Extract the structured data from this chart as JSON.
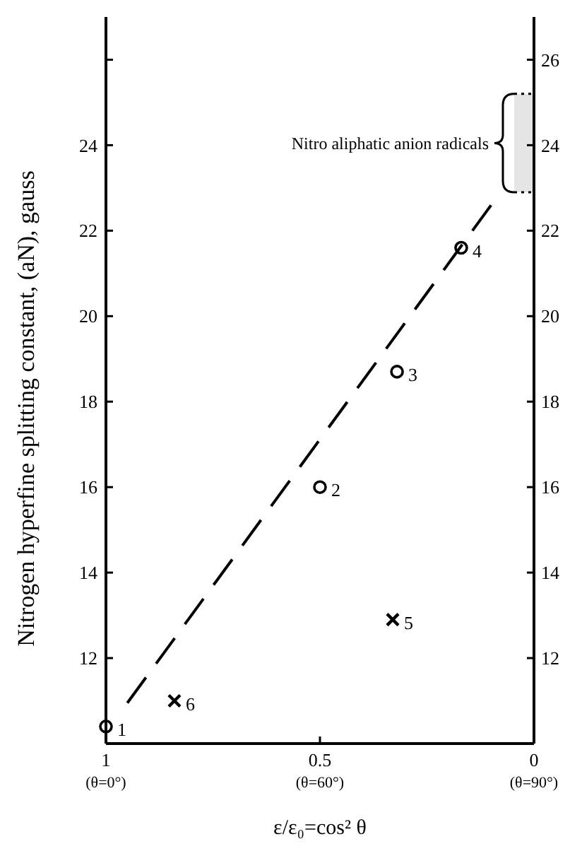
{
  "chart_data": {
    "type": "scatter",
    "xlabel": "ε/ε₀=cos² θ",
    "ylabel": "Nitrogen hyperfine splitting constant, (aN), gauss",
    "xlim": [
      1,
      0
    ],
    "xticks": [
      1,
      0.5,
      0
    ],
    "ylim": [
      10,
      27
    ],
    "yticks": [
      12,
      14,
      16,
      18,
      20,
      22,
      24,
      {
        "value": 26,
        "label": null
      }
    ],
    "y2lim": [
      10,
      27
    ],
    "y2ticks": [
      12,
      14,
      16,
      18,
      20,
      22,
      24,
      26
    ],
    "series": [
      {
        "marker": "circle",
        "color": "#000000",
        "x": [
          1.0,
          0.5,
          0.32,
          0.17
        ],
        "values": [
          10.4,
          16.0,
          18.7,
          21.6
        ]
      },
      {
        "marker": "cross",
        "color": "#000000",
        "x": [
          0.33,
          0.84
        ],
        "values": [
          12.9,
          11.0
        ]
      },
      {
        "type": "line",
        "line_style": "dashed",
        "marker": "none",
        "color": "#000000",
        "x": [
          0.95,
          0.1
        ],
        "values": [
          10.95,
          22.6
        ]
      }
    ],
    "bands": [
      {
        "axis": "y",
        "from": 22.9,
        "to": 25.2,
        "label": "Nitro aliphatic anion radicals",
        "color": "#000000"
      }
    ],
    "annotations": [
      "(θ=0°)",
      "(θ=60°)",
      "(θ=90°)",
      {
        "text": "1",
        "x": 1.0,
        "y": 10.4
      },
      {
        "text": "2",
        "x": 0.5,
        "y": 16.0
      },
      {
        "text": "3",
        "x": 0.32,
        "y": 18.7
      },
      {
        "text": "4",
        "x": 0.17,
        "y": 21.6
      },
      {
        "text": "5",
        "x": 0.33,
        "y": 12.9
      },
      {
        "text": "6",
        "x": 0.84,
        "y": 11.0
      }
    ],
    "grid": false
  }
}
